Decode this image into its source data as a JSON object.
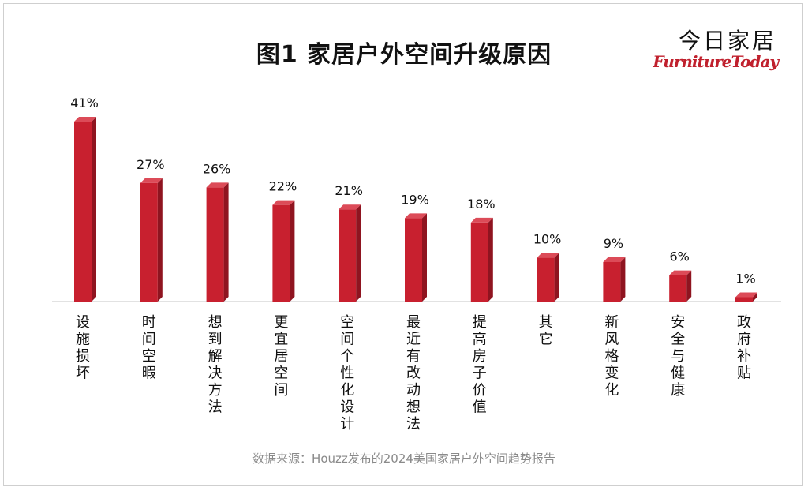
{
  "title": "图1  家居户外空间升级原因",
  "logo": {
    "cn": "今日家居",
    "en": "FurnitureToday"
  },
  "source": "数据来源：Houzz发布的2024美国家居户外空间趋势报告",
  "colors": {
    "bar": "#c8202f",
    "bar_side": "#8f1420",
    "bar_top": "#dc4b58",
    "axis": "#d9d9d9"
  },
  "chart_data": {
    "type": "bar",
    "title": "图1  家居户外空间升级原因",
    "categories": [
      "设施损坏",
      "时间空暇",
      "想到解决方法",
      "更宜居空间",
      "空间个性化设计",
      "最近有改动想法",
      "提高房子价值",
      "其它",
      "新风格变化",
      "安全与健康",
      "政府补贴"
    ],
    "values": [
      41,
      27,
      26,
      22,
      21,
      19,
      18,
      10,
      9,
      6,
      1
    ],
    "data_labels": [
      "41%",
      "27%",
      "26%",
      "22%",
      "21%",
      "19%",
      "18%",
      "10%",
      "9%",
      "6%",
      "1%"
    ],
    "unit": "%",
    "ylim": [
      0,
      41
    ],
    "grid": false,
    "legend": "none"
  }
}
